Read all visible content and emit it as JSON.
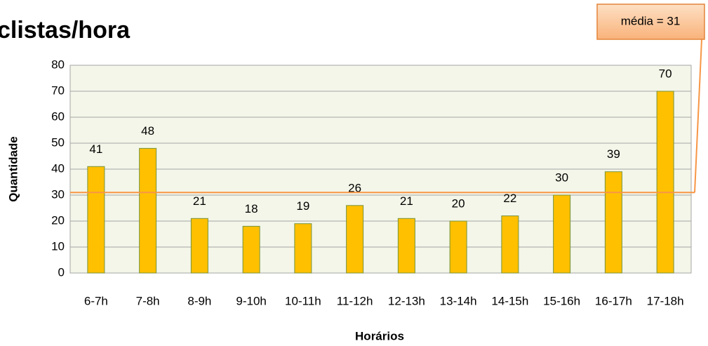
{
  "chart_data": {
    "type": "bar",
    "title": "clistas/hora",
    "x_label": "Horários",
    "y_label": "Quantidade",
    "categories": [
      "6-7h",
      "7-8h",
      "8-9h",
      "9-10h",
      "10-11h",
      "11-12h",
      "12-13h",
      "13-14h",
      "14-15h",
      "15-16h",
      "16-17h",
      "17-18h"
    ],
    "values": [
      41,
      48,
      21,
      18,
      19,
      26,
      21,
      20,
      22,
      30,
      39,
      70
    ],
    "color": "#ffc000",
    "ylim": [
      0,
      80
    ],
    "yticks": [
      0,
      10,
      20,
      30,
      40,
      50,
      60,
      70,
      80
    ],
    "grid": true,
    "mean_line": {
      "value": 31,
      "label": "média = 31"
    }
  }
}
